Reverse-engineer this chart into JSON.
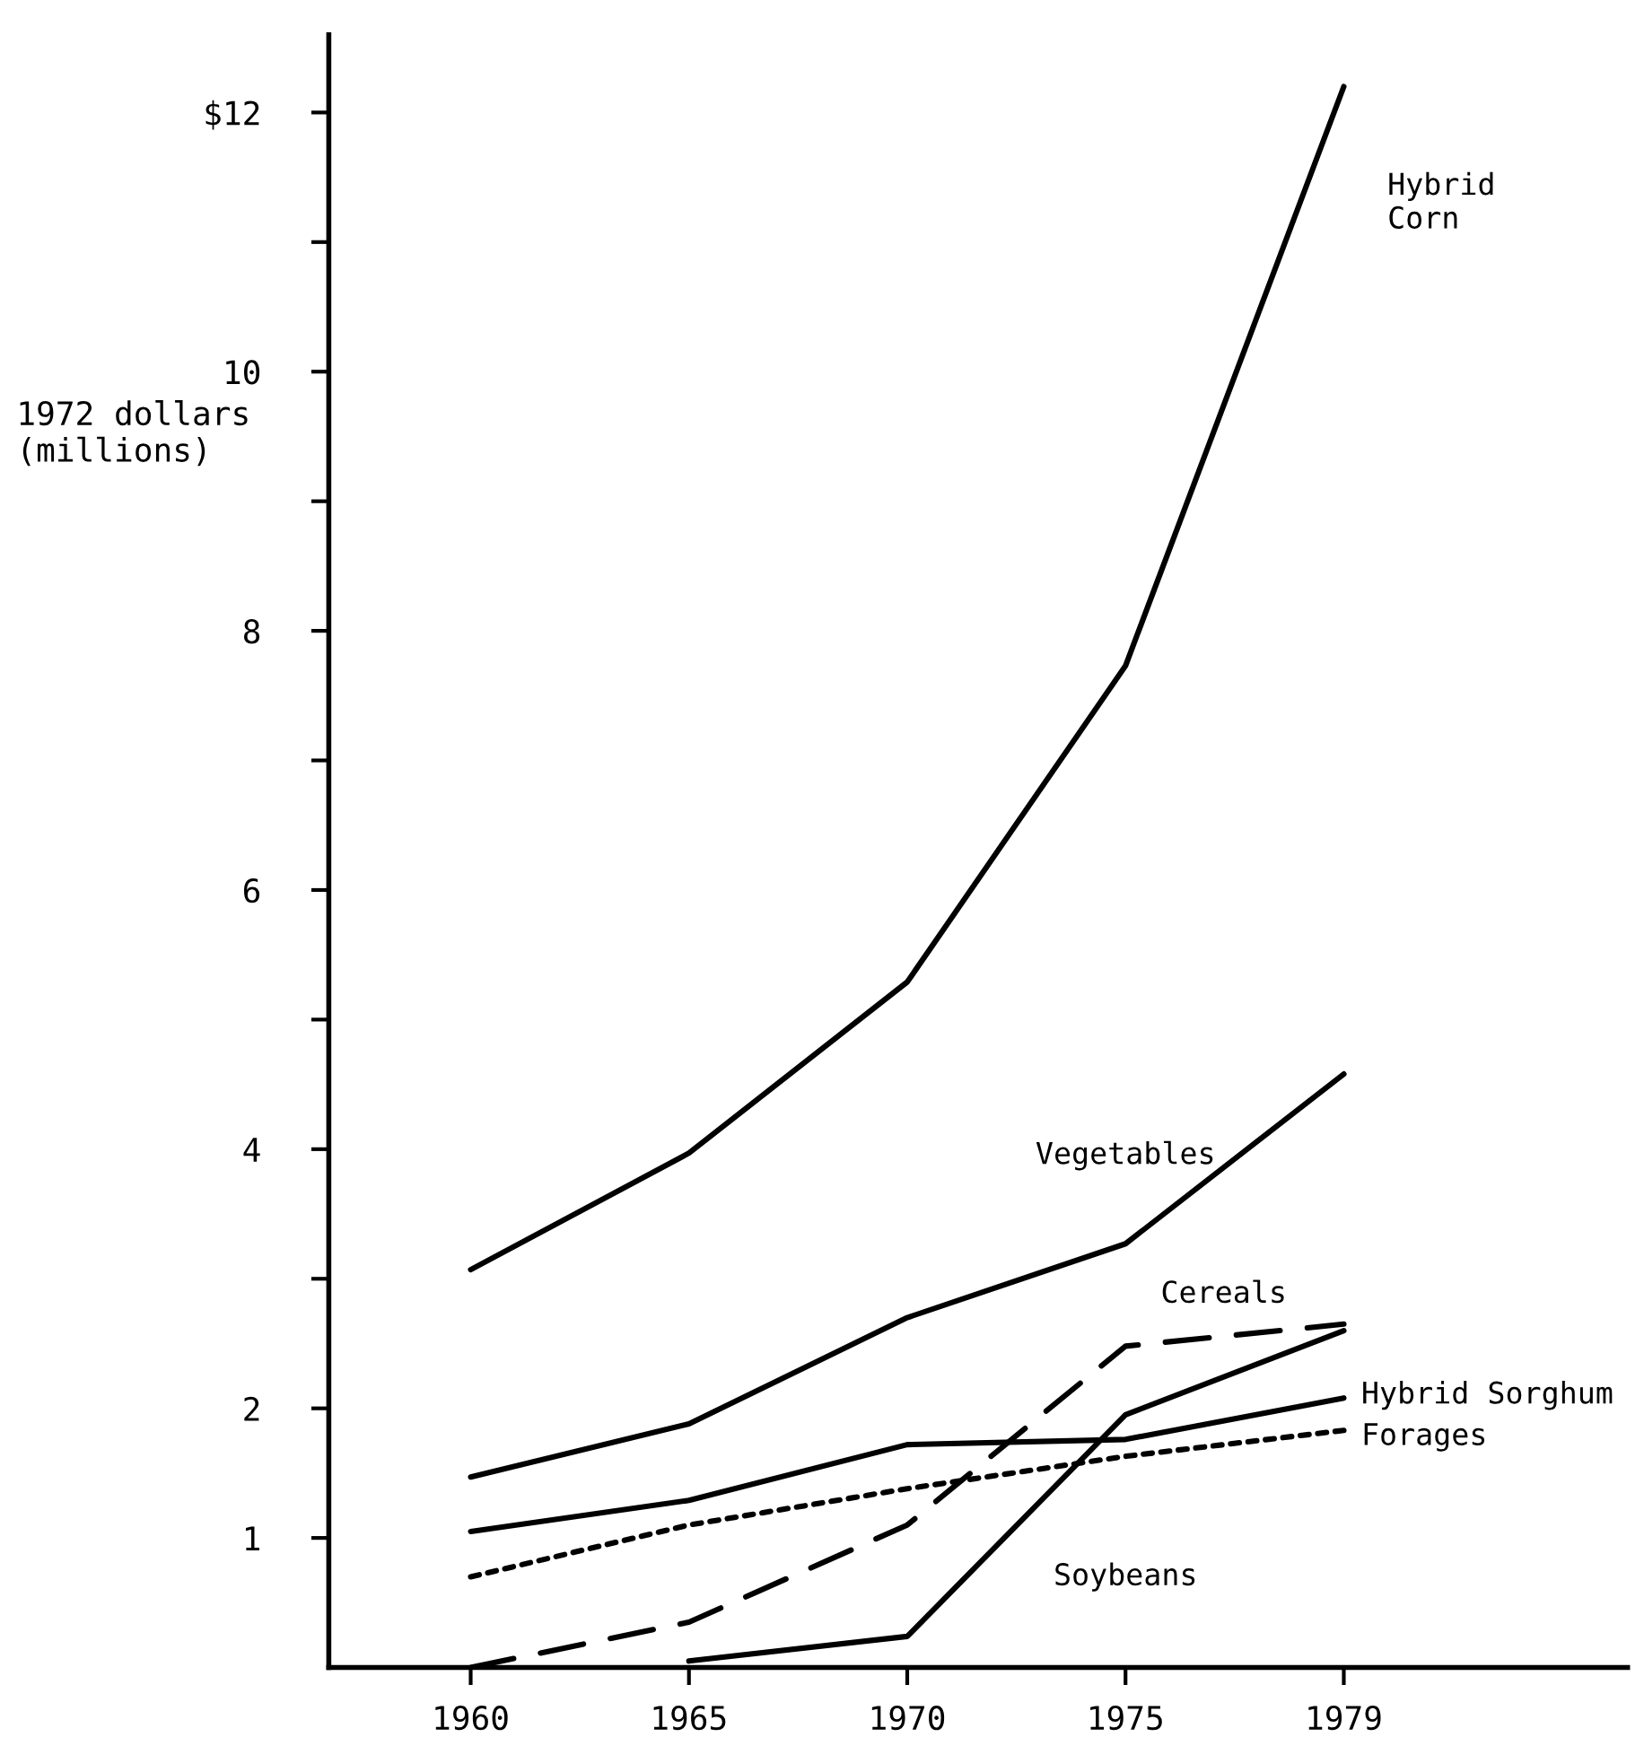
{
  "chart_data": {
    "type": "line",
    "ylabel": "1972 dollars\n(millions)",
    "categories": [
      "1960",
      "1965",
      "1970",
      "1975",
      "1979"
    ],
    "series": [
      {
        "name": "Hybrid\nCorn",
        "color": "#000000",
        "line_style": "solid",
        "values": [
          3.07,
          3.97,
          5.29,
          7.73,
          12.2
        ]
      },
      {
        "name": "Vegetables",
        "color": "#000000",
        "line_style": "solid",
        "values": [
          1.47,
          1.88,
          2.7,
          3.27,
          4.58
        ]
      },
      {
        "name": "Cereals",
        "color": "#000000",
        "line_style": "dashed",
        "values": [
          0.0,
          0.35,
          1.1,
          2.48,
          2.65
        ]
      },
      {
        "name": "Forages",
        "color": "#000000",
        "line_style": "dotted",
        "values": [
          0.7,
          1.1,
          1.38,
          1.63,
          1.83
        ]
      },
      {
        "name": "Hybrid Sorghum",
        "color": "#000000",
        "line_style": "solid",
        "values": [
          1.05,
          1.29,
          1.72,
          1.76,
          2.08
        ]
      },
      {
        "name": "Soybeans",
        "color": "#000000",
        "line_style": "solid",
        "values": [
          null,
          0.05,
          0.24,
          1.95,
          2.6
        ]
      }
    ],
    "ylim": [
      0,
      12.6
    ],
    "yticks": [
      1,
      2,
      {
        "value": 3,
        "label": null
      },
      4,
      {
        "value": 5,
        "label": null
      },
      6,
      {
        "value": 7,
        "label": null
      },
      8,
      {
        "value": 9,
        "label": null
      },
      10,
      {
        "value": 11,
        "label": null
      },
      {
        "value": 12,
        "label": "$12"
      }
    ],
    "grid": false,
    "legend": false,
    "marker": "none"
  }
}
